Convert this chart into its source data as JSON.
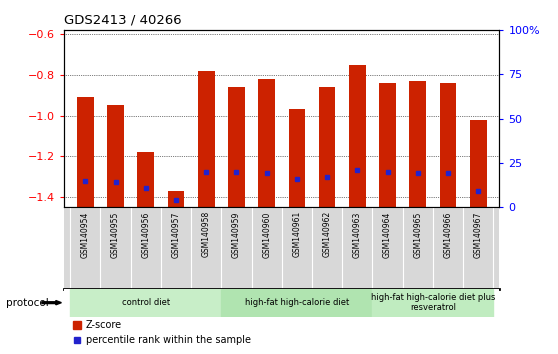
{
  "title": "GDS2413 / 40266",
  "samples": [
    "GSM140954",
    "GSM140955",
    "GSM140956",
    "GSM140957",
    "GSM140958",
    "GSM140959",
    "GSM140960",
    "GSM140961",
    "GSM140962",
    "GSM140963",
    "GSM140964",
    "GSM140965",
    "GSM140966",
    "GSM140967"
  ],
  "z_scores": [
    -0.91,
    -0.95,
    -1.18,
    -1.37,
    -0.78,
    -0.86,
    -0.82,
    -0.97,
    -0.86,
    -0.75,
    -0.84,
    -0.83,
    -0.84,
    -1.02
  ],
  "percentile_ranks": [
    15,
    14,
    11,
    4,
    20,
    20,
    19,
    16,
    17,
    21,
    20,
    19,
    19,
    9
  ],
  "ylim": [
    -1.45,
    -0.58
  ],
  "yticks": [
    -0.6,
    -0.8,
    -1.0,
    -1.2,
    -1.4
  ],
  "right_yticks": [
    0,
    25,
    50,
    75,
    100
  ],
  "bar_color": "#cc2200",
  "marker_color": "#2222cc",
  "groups": [
    {
      "label": "control diet",
      "start": 0,
      "end": 4,
      "color": "#c8eec8"
    },
    {
      "label": "high-fat high-calorie diet",
      "start": 5,
      "end": 9,
      "color": "#b0e4b0"
    },
    {
      "label": "high-fat high-calorie diet plus\nresveratrol",
      "start": 10,
      "end": 13,
      "color": "#c0ecc0"
    }
  ],
  "legend_zscore": "Z-score",
  "legend_pct": "percentile rank within the sample",
  "bar_width": 0.55
}
